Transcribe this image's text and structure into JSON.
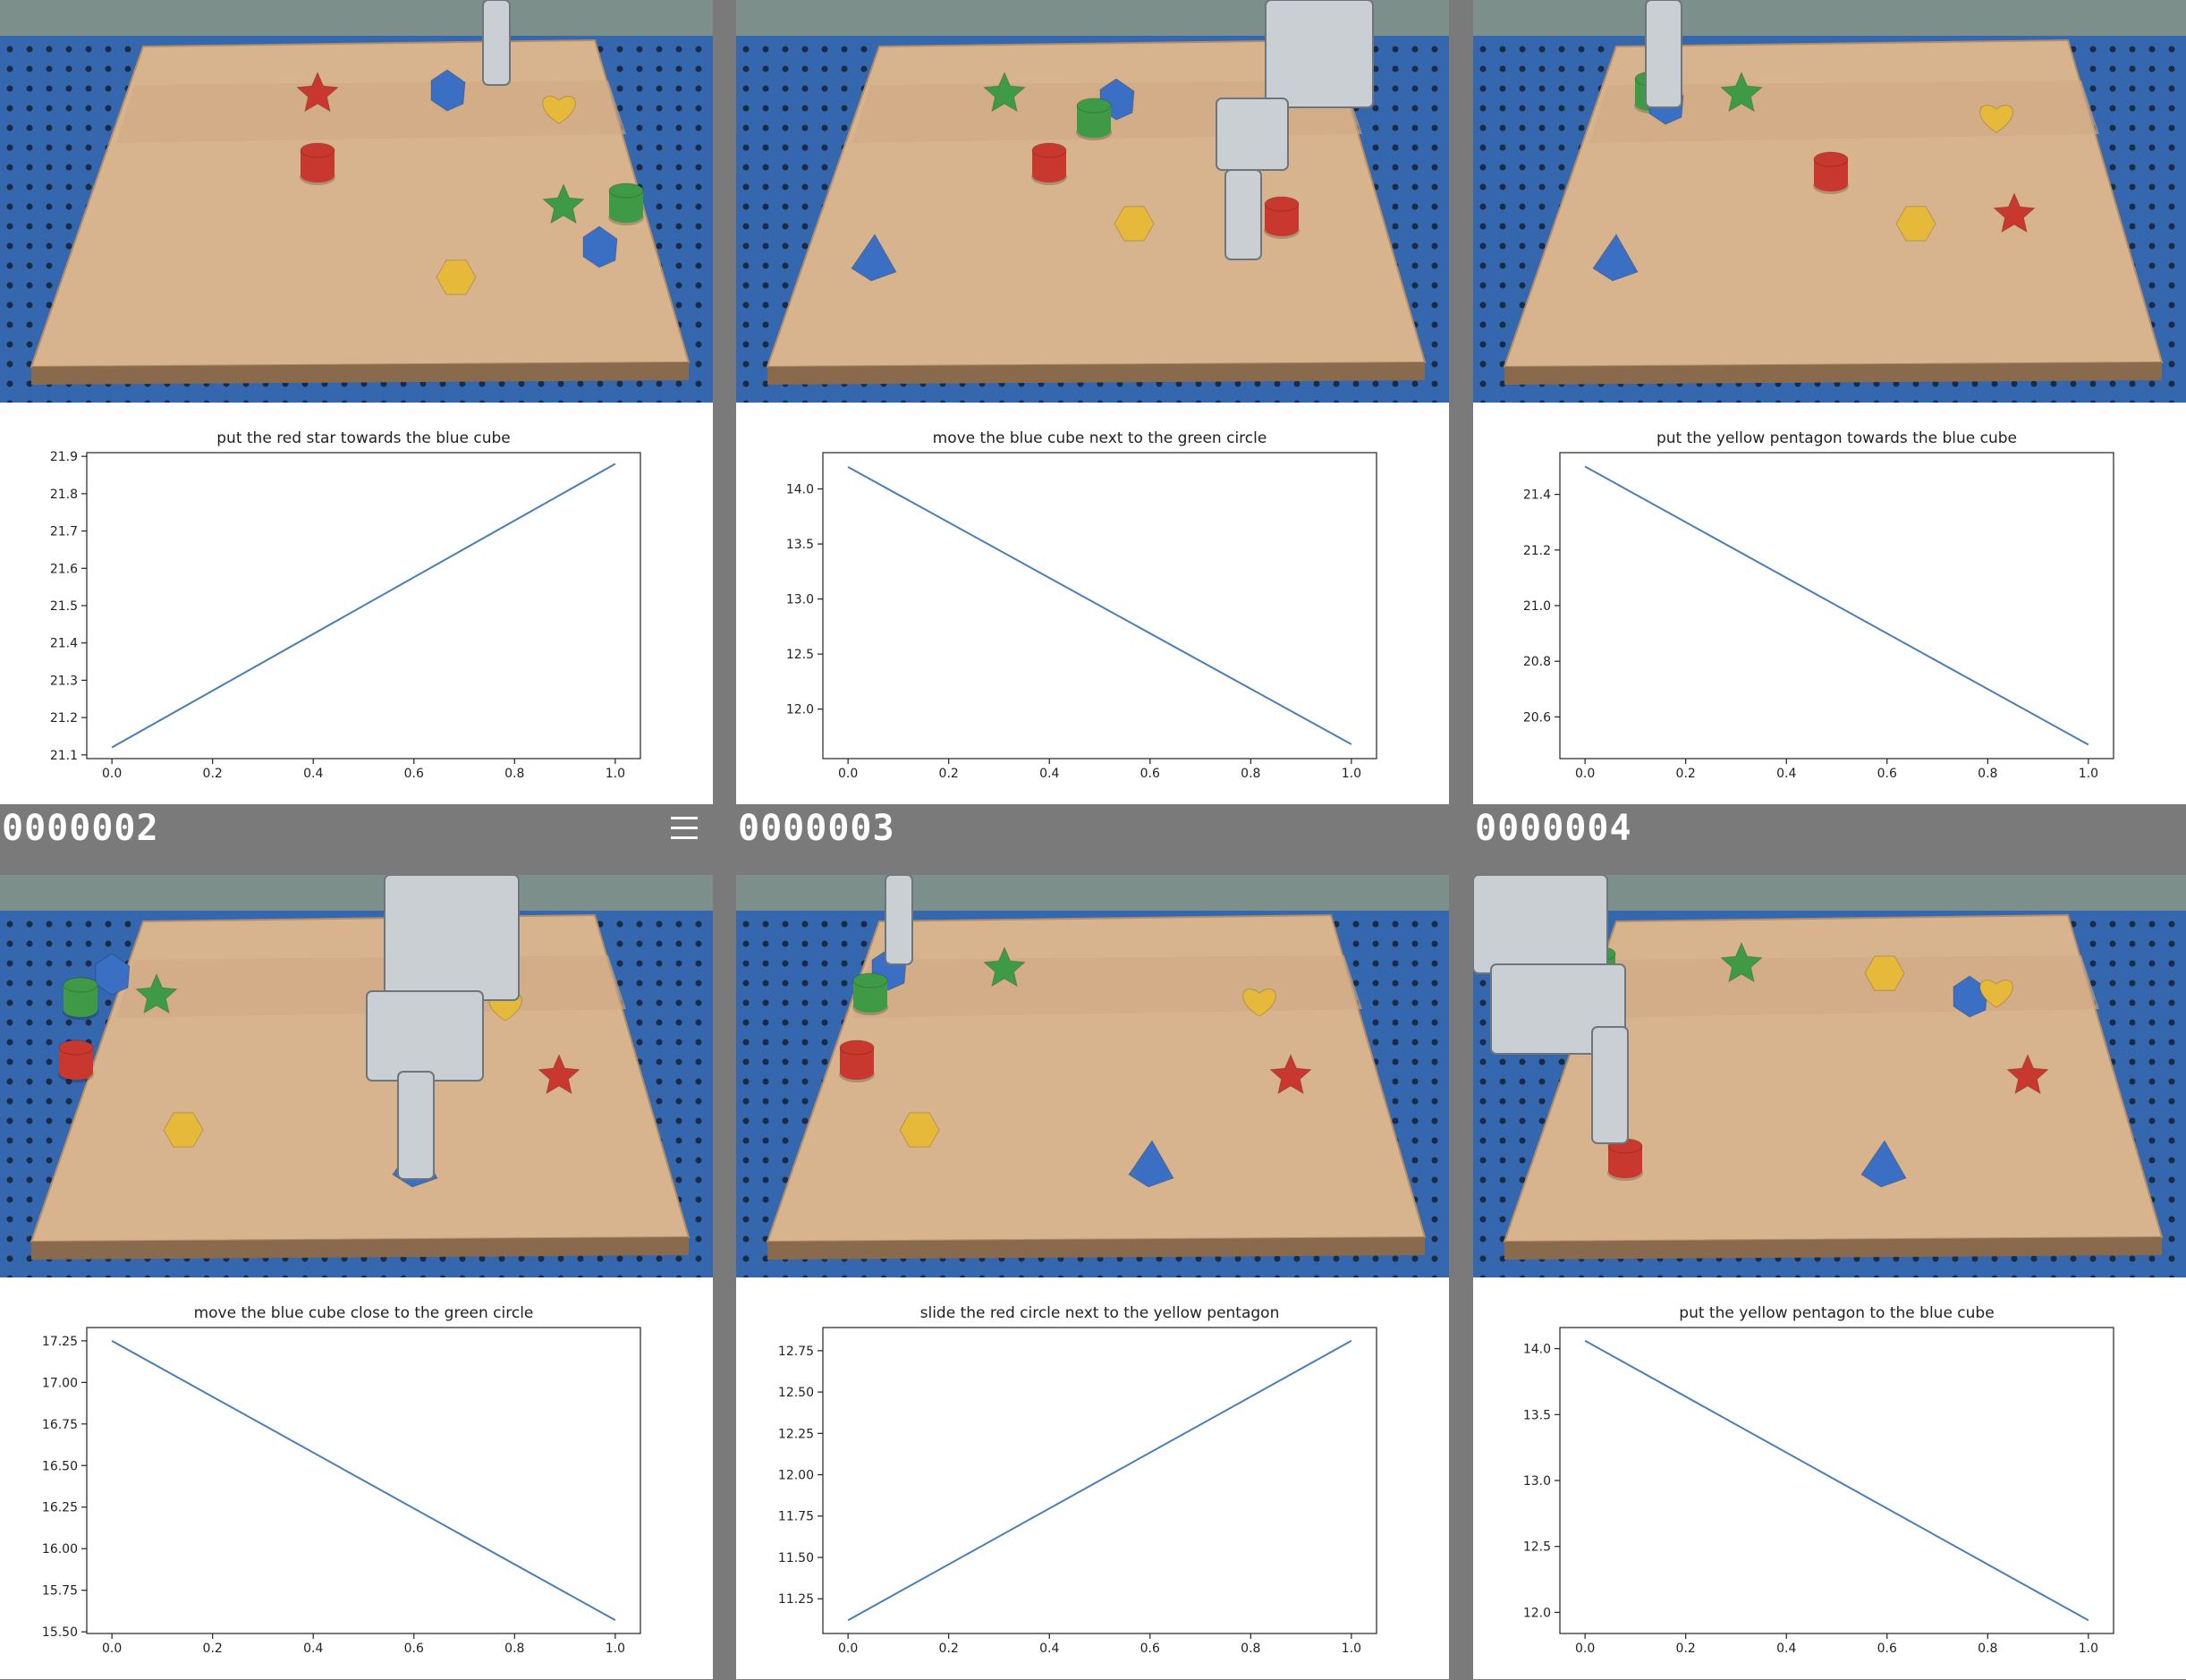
{
  "menu_icon": "hamburger-menu-icon",
  "colors": {
    "table_blue": "#2a5fa8",
    "board": "#d9b894",
    "line": "#4a7fb5",
    "separator": "#7a7a7a"
  },
  "panels": [
    {
      "frame_label": "",
      "chart_data": {
        "type": "line",
        "title": "put the red star towards the blue cube",
        "x": [
          0.0,
          1.0
        ],
        "y": [
          21.12,
          21.88
        ],
        "xlim": [
          -0.05,
          1.05
        ],
        "ylim": [
          21.09,
          21.91
        ],
        "xticks": [
          "0.0",
          "0.2",
          "0.4",
          "0.6",
          "0.8",
          "1.0"
        ],
        "yticks": [
          "21.1",
          "21.2",
          "21.3",
          "21.4",
          "21.5",
          "21.6",
          "21.7",
          "21.8",
          "21.9"
        ],
        "ytick_values": [
          21.1,
          21.2,
          21.3,
          21.4,
          21.5,
          21.6,
          21.7,
          21.8,
          21.9
        ]
      }
    },
    {
      "frame_label": "",
      "chart_data": {
        "type": "line",
        "title": "move the blue cube next to the green circle",
        "x": [
          0.0,
          1.0
        ],
        "y": [
          14.2,
          11.68
        ],
        "xlim": [
          -0.05,
          1.05
        ],
        "ylim": [
          11.55,
          14.33
        ],
        "xticks": [
          "0.0",
          "0.2",
          "0.4",
          "0.6",
          "0.8",
          "1.0"
        ],
        "yticks": [
          "12.0",
          "12.5",
          "13.0",
          "13.5",
          "14.0"
        ],
        "ytick_values": [
          12.0,
          12.5,
          13.0,
          13.5,
          14.0
        ]
      }
    },
    {
      "frame_label": "",
      "chart_data": {
        "type": "line",
        "title": "put the yellow pentagon towards the blue cube",
        "x": [
          0.0,
          1.0
        ],
        "y": [
          21.5,
          20.5
        ],
        "xlim": [
          -0.05,
          1.05
        ],
        "ylim": [
          20.45,
          21.55
        ],
        "xticks": [
          "0.0",
          "0.2",
          "0.4",
          "0.6",
          "0.8",
          "1.0"
        ],
        "yticks": [
          "20.6",
          "20.8",
          "21.0",
          "21.2",
          "21.4"
        ],
        "ytick_values": [
          20.6,
          20.8,
          21.0,
          21.2,
          21.4
        ]
      }
    },
    {
      "frame_label": "0000002",
      "chart_data": {
        "type": "line",
        "title": "move the blue cube close to the green circle",
        "x": [
          0.0,
          1.0
        ],
        "y": [
          17.25,
          15.57
        ],
        "xlim": [
          -0.05,
          1.05
        ],
        "ylim": [
          15.49,
          17.33
        ],
        "xticks": [
          "0.0",
          "0.2",
          "0.4",
          "0.6",
          "0.8",
          "1.0"
        ],
        "yticks": [
          "15.50",
          "15.75",
          "16.00",
          "16.25",
          "16.50",
          "16.75",
          "17.00",
          "17.25"
        ],
        "ytick_values": [
          15.5,
          15.75,
          16.0,
          16.25,
          16.5,
          16.75,
          17.0,
          17.25
        ]
      }
    },
    {
      "frame_label": "0000003",
      "chart_data": {
        "type": "line",
        "title": "slide the red circle next to the yellow pentagon",
        "x": [
          0.0,
          1.0
        ],
        "y": [
          11.12,
          12.81
        ],
        "xlim": [
          -0.05,
          1.05
        ],
        "ylim": [
          11.04,
          12.89
        ],
        "xticks": [
          "0.0",
          "0.2",
          "0.4",
          "0.6",
          "0.8",
          "1.0"
        ],
        "yticks": [
          "11.25",
          "11.50",
          "11.75",
          "12.00",
          "12.25",
          "12.50",
          "12.75"
        ],
        "ytick_values": [
          11.25,
          11.5,
          11.75,
          12.0,
          12.25,
          12.5,
          12.75
        ]
      }
    },
    {
      "frame_label": "0000004",
      "chart_data": {
        "type": "line",
        "title": "put the yellow pentagon to the blue cube",
        "x": [
          0.0,
          1.0
        ],
        "y": [
          14.06,
          11.94
        ],
        "xlim": [
          -0.05,
          1.05
        ],
        "ylim": [
          11.84,
          14.16
        ],
        "xticks": [
          "0.0",
          "0.2",
          "0.4",
          "0.6",
          "0.8",
          "1.0"
        ],
        "yticks": [
          "12.0",
          "12.5",
          "13.0",
          "13.5",
          "14.0"
        ],
        "ytick_values": [
          12.0,
          12.5,
          13.0,
          13.5,
          14.0
        ]
      }
    }
  ]
}
